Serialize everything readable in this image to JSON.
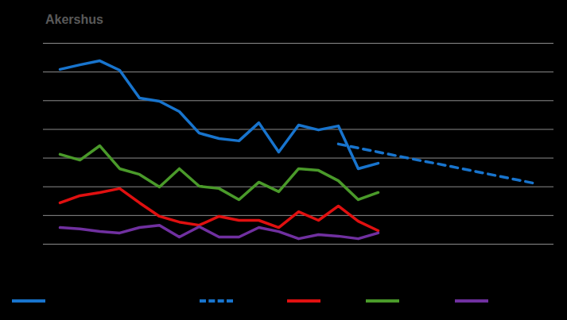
{
  "chart_data": {
    "type": "line",
    "title": "Akershus",
    "categories": [
      null,
      null,
      null,
      null,
      null,
      null,
      null,
      null,
      null,
      null,
      null,
      null,
      null,
      null,
      null,
      null,
      null,
      null,
      null,
      null,
      null,
      null,
      null,
      null,
      null
    ],
    "ylim": [
      0,
      7
    ],
    "yticks": [
      0,
      1,
      2,
      3,
      4,
      5,
      6,
      7
    ],
    "grid": true,
    "tick_labels": false,
    "legend": "bottom",
    "series": [
      {
        "color": "#1874cd",
        "line_style": "solid",
        "values": [
          6.09,
          6.25,
          6.39,
          6.06,
          5.09,
          4.98,
          4.62,
          3.87,
          3.68,
          3.6,
          4.23,
          3.21,
          4.15,
          3.98,
          4.12,
          2.63,
          2.82,
          null,
          null,
          null,
          null,
          null,
          null,
          null,
          null
        ]
      },
      {
        "color": "#1874cd",
        "line_style": "dashed",
        "values": [
          null,
          null,
          null,
          null,
          null,
          null,
          null,
          null,
          null,
          null,
          null,
          null,
          null,
          null,
          3.49,
          3.35,
          3.21,
          3.07,
          2.93,
          2.8,
          2.66,
          2.52,
          2.38,
          2.24,
          2.1
        ]
      },
      {
        "color": "#e01010",
        "line_style": "solid",
        "values": [
          1.44,
          1.69,
          1.8,
          1.94,
          1.44,
          0.97,
          0.77,
          0.66,
          0.97,
          0.83,
          0.83,
          0.58,
          1.13,
          0.83,
          1.33,
          0.8,
          0.47,
          null,
          null,
          null,
          null,
          null,
          null,
          null,
          null
        ]
      },
      {
        "color": "#4a9a2a",
        "line_style": "solid",
        "values": [
          3.13,
          2.93,
          3.43,
          2.63,
          2.43,
          1.99,
          2.63,
          2.02,
          1.94,
          1.55,
          2.16,
          1.83,
          2.63,
          2.57,
          2.21,
          1.55,
          1.8,
          null,
          null,
          null,
          null,
          null,
          null,
          null,
          null
        ]
      },
      {
        "color": "#7030a0",
        "line_style": "solid",
        "values": [
          0.58,
          0.53,
          0.44,
          0.39,
          0.58,
          0.66,
          0.25,
          0.61,
          0.25,
          0.25,
          0.58,
          0.44,
          0.19,
          0.33,
          0.28,
          0.19,
          0.39,
          null,
          null,
          null,
          null,
          null,
          null,
          null,
          null
        ]
      }
    ]
  }
}
